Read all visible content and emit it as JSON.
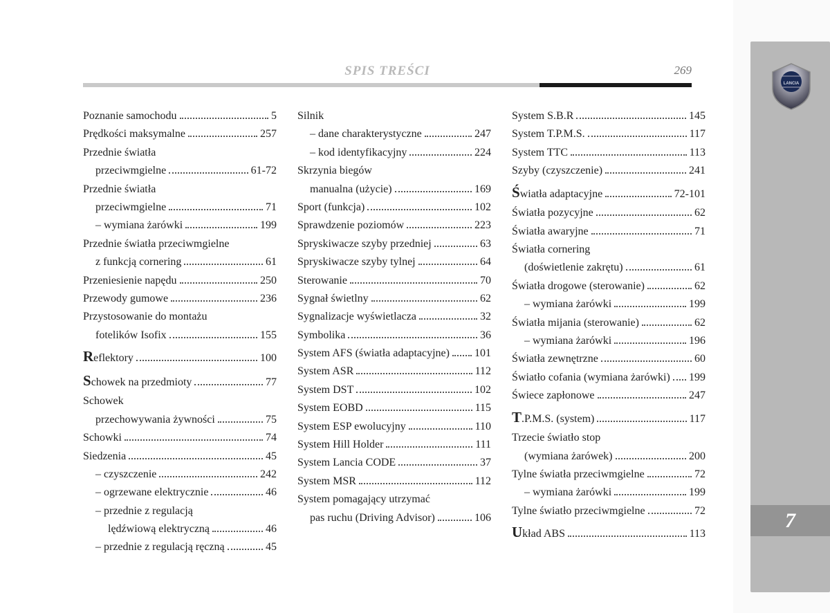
{
  "header": {
    "title": "SPIS TREŚCI",
    "page": "269"
  },
  "tab": "7",
  "col1": [
    {
      "t": "simple",
      "label": "Poznanie samochodu",
      "pg": "5"
    },
    {
      "t": "simple",
      "label": "Prędkości maksymalne",
      "pg": "257"
    },
    {
      "t": "multi",
      "l1": "Przednie światła",
      "l2": "przeciwmgielne",
      "pg": "61-72"
    },
    {
      "t": "multi",
      "l1": "Przednie światła",
      "l2": "przeciwmgielne",
      "pg": "71"
    },
    {
      "t": "simple",
      "indent": 1,
      "label": "– wymiana żarówki",
      "pg": "199"
    },
    {
      "t": "multi",
      "l1": "Przednie światła przeciwmgielne",
      "l2": "z funkcją cornering",
      "pg": "61"
    },
    {
      "t": "simple",
      "label": "Przeniesienie napędu",
      "pg": "250"
    },
    {
      "t": "simple",
      "label": "Przewody gumowe",
      "pg": "236"
    },
    {
      "t": "multi",
      "l1": "Przystosowanie do montażu",
      "l2": "fotelików Isofix",
      "pg": "155"
    },
    {
      "t": "initial",
      "init": "R",
      "rest": "eflektory",
      "pg": "100"
    },
    {
      "t": "initial",
      "init": "S",
      "rest": "chowek na przedmioty",
      "pg": "77"
    },
    {
      "t": "multi",
      "l1": "Schowek",
      "l2": "przechowywania żywności",
      "pg": "75"
    },
    {
      "t": "simple",
      "label": "Schowki",
      "pg": "74"
    },
    {
      "t": "simple",
      "label": "Siedzenia",
      "pg": "45"
    },
    {
      "t": "simple",
      "indent": 1,
      "label": "– czyszczenie",
      "pg": "242"
    },
    {
      "t": "simple",
      "indent": 1,
      "label": "– ogrzewane elektrycznie",
      "pg": "46"
    },
    {
      "t": "multi",
      "indent": 1,
      "l1": "– przednie z regulacją",
      "l2": "lędźwiową elektryczną",
      "pg": "46"
    },
    {
      "t": "simple",
      "indent": 1,
      "label": "– przednie z regulacją ręczną",
      "pg": "45"
    }
  ],
  "col2": [
    {
      "t": "head",
      "label": "Silnik"
    },
    {
      "t": "simple",
      "indent": 1,
      "label": "– dane charakterystyczne",
      "pg": "247"
    },
    {
      "t": "simple",
      "indent": 1,
      "label": "– kod identyfikacyjny",
      "pg": "224"
    },
    {
      "t": "multi",
      "l1": "Skrzynia biegów",
      "l2": "manualna (użycie)",
      "pg": "169"
    },
    {
      "t": "simple",
      "label": "Sport (funkcja)",
      "pg": "102"
    },
    {
      "t": "simple",
      "label": "Sprawdzenie poziomów",
      "pg": "223"
    },
    {
      "t": "simple",
      "label": "Spryskiwacze szyby przedniej",
      "pg": "63"
    },
    {
      "t": "simple",
      "label": "Spryskiwacze szyby tylnej",
      "pg": "64"
    },
    {
      "t": "simple",
      "label": "Sterowanie",
      "pg": "70"
    },
    {
      "t": "simple",
      "label": "Sygnał świetlny",
      "pg": "62"
    },
    {
      "t": "simple",
      "label": "Sygnalizacje wyświetlacza",
      "pg": "32"
    },
    {
      "t": "simple",
      "label": "Symbolika",
      "pg": "36"
    },
    {
      "t": "simple",
      "label": "System AFS (światła adaptacyjne)",
      "pg": "101"
    },
    {
      "t": "simple",
      "label": "System ASR",
      "pg": "112"
    },
    {
      "t": "simple",
      "label": "System DST",
      "pg": "102"
    },
    {
      "t": "simple",
      "label": "System EOBD",
      "pg": "115"
    },
    {
      "t": "simple",
      "label": "System ESP ewolucyjny",
      "pg": "110"
    },
    {
      "t": "simple",
      "label": "System Hill Holder",
      "pg": "111"
    },
    {
      "t": "simple",
      "label": "System Lancia CODE",
      "pg": "37"
    },
    {
      "t": "simple",
      "label": "System MSR",
      "pg": "112"
    },
    {
      "t": "multi",
      "l1": "System pomagający utrzymać",
      "l2": "pas ruchu (Driving Advisor)",
      "pg": "106"
    }
  ],
  "col3": [
    {
      "t": "simple",
      "label": "System S.B.R",
      "pg": "145"
    },
    {
      "t": "simple",
      "label": "System T.P.M.S.",
      "pg": "117"
    },
    {
      "t": "simple",
      "label": "System TTC",
      "pg": "113"
    },
    {
      "t": "simple",
      "label": "Szyby (czyszczenie)",
      "pg": "241"
    },
    {
      "t": "initial",
      "init": "Ś",
      "rest": "wiatła adaptacyjne",
      "pg": "72-101"
    },
    {
      "t": "simple",
      "label": "Światła pozycyjne",
      "pg": "62"
    },
    {
      "t": "simple",
      "label": "Światła awaryjne",
      "pg": "71"
    },
    {
      "t": "multi",
      "l1": "Światła cornering",
      "l2": "(doświetlenie zakrętu)",
      "pg": "61"
    },
    {
      "t": "simple",
      "label": "Światła drogowe (sterowanie)",
      "pg": "62"
    },
    {
      "t": "simple",
      "indent": 1,
      "label": "– wymiana żarówki",
      "pg": "199"
    },
    {
      "t": "simple",
      "label": "Światła mijania (sterowanie)",
      "pg": "62"
    },
    {
      "t": "simple",
      "indent": 1,
      "label": "– wymiana żarówki",
      "pg": "196"
    },
    {
      "t": "simple",
      "label": "Światła zewnętrzne",
      "pg": "60"
    },
    {
      "t": "simple",
      "label": "Światło cofania (wymiana żarówki)",
      "pg": "199"
    },
    {
      "t": "simple",
      "label": "Świece zapłonowe",
      "pg": "247"
    },
    {
      "t": "initial",
      "init": "T",
      "rest": ".P.M.S. (system)",
      "pg": "117"
    },
    {
      "t": "multi",
      "l1": "Trzecie światło stop",
      "l2": "(wymiana żarówek)",
      "pg": "200"
    },
    {
      "t": "simple",
      "label": "Tylne światła przeciwmgielne",
      "pg": "72"
    },
    {
      "t": "simple",
      "indent": 1,
      "label": "– wymiana żarówki",
      "pg": "199"
    },
    {
      "t": "simple",
      "label": "Tylne światło przeciwmgielne",
      "pg": "72"
    },
    {
      "t": "initial",
      "init": "U",
      "rest": "kład ABS",
      "pg": "113"
    }
  ]
}
